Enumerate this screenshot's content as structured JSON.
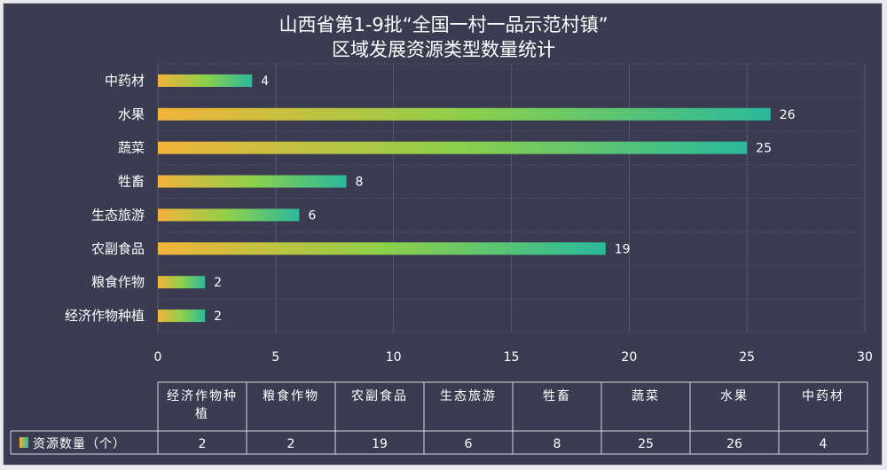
{
  "chart_data": {
    "type": "bar",
    "orientation": "horizontal",
    "title_line1": "山西省第1-9批“全国一村一品示范村镇”",
    "title_line2": "区域发展资源类型数量统计",
    "categories": [
      "中药材",
      "水果",
      "蔬菜",
      "牲畜",
      "生态旅游",
      "农副食品",
      "粮食作物",
      "经济作物种植"
    ],
    "values": [
      4,
      26,
      25,
      8,
      6,
      19,
      2,
      2
    ],
    "xlim": [
      0,
      30
    ],
    "xticks": [
      0,
      5,
      10,
      15,
      20,
      25,
      30
    ],
    "grid": true,
    "series": [
      {
        "name": "资源数量（个）",
        "values": [
          4,
          26,
          25,
          8,
          6,
          19,
          2,
          2
        ]
      }
    ],
    "table": {
      "columns": [
        [
          "经济作物种",
          "植"
        ],
        [
          "粮食作物"
        ],
        [
          "农副食品"
        ],
        [
          "生态旅游"
        ],
        [
          "牲畜"
        ],
        [
          "蔬菜"
        ],
        [
          "水果"
        ],
        [
          "中药材"
        ]
      ],
      "values": [
        2,
        2,
        19,
        6,
        8,
        25,
        26,
        4
      ]
    },
    "colors": {
      "bar_start": "#f2b43a",
      "bar_end": "#2ab99c",
      "background": "#3b3c52"
    }
  }
}
